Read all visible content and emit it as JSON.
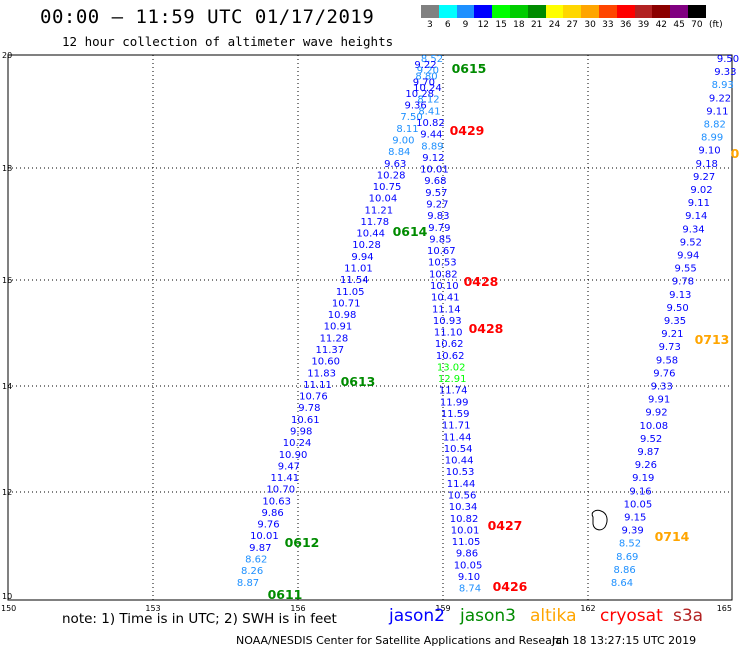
{
  "header": {
    "title": "00:00 – 11:59 UTC 01/17/2019",
    "subtitle": "12 hour collection of altimeter wave heights"
  },
  "colorbar": {
    "unit_label": "(ft)",
    "labels": [
      "3",
      "6",
      "9",
      "12",
      "15",
      "18",
      "21",
      "24",
      "27",
      "30",
      "33",
      "36",
      "39",
      "42",
      "45",
      "70"
    ],
    "colors": [
      "#808080",
      "#00ffff",
      "#1e90ff",
      "#0000ff",
      "#00ff00",
      "#00cd00",
      "#008b00",
      "#ffff00",
      "#ffd700",
      "#ffa500",
      "#ff4500",
      "#ff0000",
      "#b22222",
      "#8b0000",
      "#800080",
      "#000000"
    ]
  },
  "axes": {
    "lat_labels": [
      "20",
      "18",
      "16",
      "14",
      "12",
      "10"
    ],
    "lon_labels": [
      "150",
      "153",
      "156",
      "159",
      "162",
      "165"
    ]
  },
  "tracks": {
    "jason2_a": [
      {
        "v": "8.52",
        "c": "#1e90ff"
      },
      {
        "v": "9.22",
        "c": "#0000ff"
      },
      {
        "v": "9.20",
        "c": "#1e90ff"
      },
      {
        "v": "8.80",
        "c": "#1e90ff"
      },
      {
        "v": "9.70",
        "c": "#0000ff"
      },
      {
        "v": "10.24",
        "c": "#0000ff"
      },
      {
        "v": "10.28",
        "c": "#0000ff"
      },
      {
        "v": "8.12",
        "c": "#1e90ff"
      },
      {
        "v": "9.36",
        "c": "#0000ff"
      },
      {
        "v": "8.41",
        "c": "#1e90ff"
      },
      {
        "v": "7.50",
        "c": "#1e90ff"
      },
      {
        "v": "10.82",
        "c": "#0000ff"
      },
      {
        "v": "8.11",
        "c": "#1e90ff"
      },
      {
        "v": "9.44",
        "c": "#0000ff"
      },
      {
        "v": "9.00",
        "c": "#1e90ff"
      },
      {
        "v": "8.89",
        "c": "#1e90ff"
      },
      {
        "v": "8.84",
        "c": "#1e90ff"
      },
      {
        "v": "9.12",
        "c": "#0000ff"
      },
      {
        "v": "9.63",
        "c": "#0000ff"
      },
      {
        "v": "10.01",
        "c": "#0000ff"
      },
      {
        "v": "10.28",
        "c": "#0000ff"
      },
      {
        "v": "9.68",
        "c": "#0000ff"
      },
      {
        "v": "10.75",
        "c": "#0000ff"
      },
      {
        "v": "9.57",
        "c": "#0000ff"
      },
      {
        "v": "10.04",
        "c": "#0000ff"
      },
      {
        "v": "9.27",
        "c": "#0000ff"
      },
      {
        "v": "11.21",
        "c": "#0000ff"
      },
      {
        "v": "9.83",
        "c": "#0000ff"
      },
      {
        "v": "11.78",
        "c": "#0000ff"
      },
      {
        "v": "9.79",
        "c": "#0000ff"
      },
      {
        "v": "10.44",
        "c": "#0000ff"
      },
      {
        "v": "9.85",
        "c": "#0000ff"
      },
      {
        "v": "10.28",
        "c": "#0000ff"
      },
      {
        "v": "10.67",
        "c": "#0000ff"
      },
      {
        "v": "9.94",
        "c": "#0000ff"
      },
      {
        "v": "10.53",
        "c": "#0000ff"
      },
      {
        "v": "11.01",
        "c": "#0000ff"
      },
      {
        "v": "10.82",
        "c": "#0000ff"
      },
      {
        "v": "11.54",
        "c": "#0000ff"
      },
      {
        "v": "10.10",
        "c": "#0000ff"
      },
      {
        "v": "11.05",
        "c": "#0000ff"
      },
      {
        "v": "10.41",
        "c": "#0000ff"
      },
      {
        "v": "10.71",
        "c": "#0000ff"
      },
      {
        "v": "11.14",
        "c": "#0000ff"
      },
      {
        "v": "10.98",
        "c": "#0000ff"
      },
      {
        "v": "10.93",
        "c": "#0000ff"
      },
      {
        "v": "10.91",
        "c": "#0000ff"
      },
      {
        "v": "11.10",
        "c": "#0000ff"
      },
      {
        "v": "11.28",
        "c": "#0000ff"
      },
      {
        "v": "10.62",
        "c": "#0000ff"
      },
      {
        "v": "11.37",
        "c": "#0000ff"
      },
      {
        "v": "10.62",
        "c": "#0000ff"
      },
      {
        "v": "10.60",
        "c": "#0000ff"
      },
      {
        "v": "13.02",
        "c": "#00ff00"
      },
      {
        "v": "11.83",
        "c": "#0000ff"
      },
      {
        "v": "12.91",
        "c": "#00ff00"
      },
      {
        "v": "11.11",
        "c": "#0000ff"
      },
      {
        "v": "11.74",
        "c": "#0000ff"
      },
      {
        "v": "10.76",
        "c": "#0000ff"
      },
      {
        "v": "11.99",
        "c": "#0000ff"
      },
      {
        "v": "9.78",
        "c": "#0000ff"
      },
      {
        "v": "11.59",
        "c": "#0000ff"
      },
      {
        "v": "10.61",
        "c": "#0000ff"
      },
      {
        "v": "11.71",
        "c": "#0000ff"
      },
      {
        "v": "9.98",
        "c": "#0000ff"
      },
      {
        "v": "11.44",
        "c": "#0000ff"
      },
      {
        "v": "10.24",
        "c": "#0000ff"
      },
      {
        "v": "10.54",
        "c": "#0000ff"
      },
      {
        "v": "10.90",
        "c": "#0000ff"
      },
      {
        "v": "10.44",
        "c": "#0000ff"
      },
      {
        "v": "9.47",
        "c": "#0000ff"
      },
      {
        "v": "10.53",
        "c": "#0000ff"
      },
      {
        "v": "11.41",
        "c": "#0000ff"
      },
      {
        "v": "11.44",
        "c": "#0000ff"
      },
      {
        "v": "10.70",
        "c": "#0000ff"
      },
      {
        "v": "10.56",
        "c": "#0000ff"
      },
      {
        "v": "10.63",
        "c": "#0000ff"
      },
      {
        "v": "10.34",
        "c": "#0000ff"
      },
      {
        "v": "9.86",
        "c": "#0000ff"
      },
      {
        "v": "10.82",
        "c": "#0000ff"
      },
      {
        "v": "9.76",
        "c": "#0000ff"
      },
      {
        "v": "10.01",
        "c": "#0000ff"
      },
      {
        "v": "10.01",
        "c": "#0000ff"
      },
      {
        "v": "11.05",
        "c": "#0000ff"
      },
      {
        "v": "9.87",
        "c": "#0000ff"
      },
      {
        "v": "9.86",
        "c": "#0000ff"
      },
      {
        "v": "8.62",
        "c": "#1e90ff"
      },
      {
        "v": "10.05",
        "c": "#0000ff"
      },
      {
        "v": "8.26",
        "c": "#1e90ff"
      },
      {
        "v": "9.10",
        "c": "#0000ff"
      },
      {
        "v": "8.87",
        "c": "#1e90ff"
      },
      {
        "v": "8.74",
        "c": "#1e90ff"
      }
    ],
    "jason2_b": [
      {
        "v": "9.50",
        "c": "#0000ff"
      },
      {
        "v": "9.33",
        "c": "#0000ff"
      },
      {
        "v": "8.93",
        "c": "#1e90ff"
      },
      {
        "v": "9.22",
        "c": "#0000ff"
      },
      {
        "v": "9.11",
        "c": "#0000ff"
      },
      {
        "v": "8.82",
        "c": "#1e90ff"
      },
      {
        "v": "8.99",
        "c": "#1e90ff"
      },
      {
        "v": "9.10",
        "c": "#0000ff"
      },
      {
        "v": "9.18",
        "c": "#0000ff"
      },
      {
        "v": "9.27",
        "c": "#0000ff"
      },
      {
        "v": "9.02",
        "c": "#0000ff"
      },
      {
        "v": "9.11",
        "c": "#0000ff"
      },
      {
        "v": "9.14",
        "c": "#0000ff"
      },
      {
        "v": "9.34",
        "c": "#0000ff"
      },
      {
        "v": "9.52",
        "c": "#0000ff"
      },
      {
        "v": "9.94",
        "c": "#0000ff"
      },
      {
        "v": "9.55",
        "c": "#0000ff"
      },
      {
        "v": "9.78",
        "c": "#0000ff"
      },
      {
        "v": "9.13",
        "c": "#0000ff"
      },
      {
        "v": "9.50",
        "c": "#0000ff"
      },
      {
        "v": "9.35",
        "c": "#0000ff"
      },
      {
        "v": "9.21",
        "c": "#0000ff"
      },
      {
        "v": "9.73",
        "c": "#0000ff"
      },
      {
        "v": "9.58",
        "c": "#0000ff"
      },
      {
        "v": "9.76",
        "c": "#0000ff"
      },
      {
        "v": "9.33",
        "c": "#0000ff"
      },
      {
        "v": "9.91",
        "c": "#0000ff"
      },
      {
        "v": "9.92",
        "c": "#0000ff"
      },
      {
        "v": "10.08",
        "c": "#0000ff"
      },
      {
        "v": "9.52",
        "c": "#0000ff"
      },
      {
        "v": "9.87",
        "c": "#0000ff"
      },
      {
        "v": "9.26",
        "c": "#0000ff"
      },
      {
        "v": "9.19",
        "c": "#0000ff"
      },
      {
        "v": "9.16",
        "c": "#0000ff"
      },
      {
        "v": "10.05",
        "c": "#0000ff"
      },
      {
        "v": "9.15",
        "c": "#0000ff"
      },
      {
        "v": "9.39",
        "c": "#0000ff"
      },
      {
        "v": "8.52",
        "c": "#1e90ff"
      },
      {
        "v": "8.69",
        "c": "#1e90ff"
      },
      {
        "v": "8.86",
        "c": "#1e90ff"
      },
      {
        "v": "8.64",
        "c": "#1e90ff"
      }
    ]
  },
  "time_labels": [
    {
      "t": "0615",
      "c": "#008b00"
    },
    {
      "t": "0429",
      "c": "#ff0000"
    },
    {
      "t": "0614",
      "c": "#008b00"
    },
    {
      "t": "0428",
      "c": "#ff0000"
    },
    {
      "t": "0428",
      "c": "#ff0000"
    },
    {
      "t": "0613",
      "c": "#008b00"
    },
    {
      "t": "0427",
      "c": "#ff0000"
    },
    {
      "t": "0612",
      "c": "#008b00"
    },
    {
      "t": "0426",
      "c": "#ff0000"
    },
    {
      "t": "0611",
      "c": "#008b00"
    },
    {
      "t": "0713",
      "c": "#ffa500"
    },
    {
      "t": "0714",
      "c": "#ffa500"
    },
    {
      "t": "0",
      "c": "#ffa500"
    }
  ],
  "footer": {
    "note": "note:  1) Time is in UTC;  2) SWH is in feet",
    "legend": [
      {
        "name": "jason2",
        "color": "#0000ff"
      },
      {
        "name": "jason3",
        "color": "#008b00"
      },
      {
        "name": "altika",
        "color": "#ffa500"
      },
      {
        "name": "cryosat",
        "color": "#ff0000"
      },
      {
        "name": "s3a",
        "color": "#b22222"
      }
    ],
    "credit": "NOAA/NESDIS Center for Satellite Applications and Research",
    "timestamp": "Jan 18 13:27:15 UTC 2019"
  }
}
